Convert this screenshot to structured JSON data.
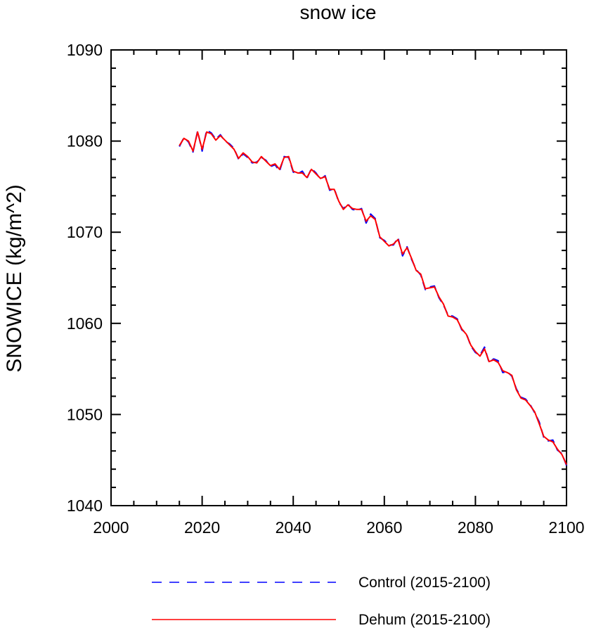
{
  "chart_data": {
    "type": "line",
    "title": "snow ice",
    "ylabel": "SNOWICE  (kg/m^2)",
    "xlabel": "",
    "xlim": [
      2000,
      2100
    ],
    "ylim": [
      1040,
      1090
    ],
    "xticks": [
      2000,
      2020,
      2040,
      2060,
      2080,
      2100
    ],
    "yticks": [
      1040,
      1050,
      1060,
      1070,
      1080,
      1090
    ],
    "xtick_labels": [
      "2000",
      "2020",
      "2040",
      "2060",
      "2080",
      "2100"
    ],
    "ytick_labels": [
      "1040",
      "1050",
      "1060",
      "1070",
      "1080",
      "1090"
    ],
    "x_minor_step": 5,
    "y_minor_step": 2,
    "grid": false,
    "legend_position": "bottom",
    "x": [
      2015,
      2016,
      2017,
      2018,
      2019,
      2020,
      2021,
      2022,
      2023,
      2024,
      2025,
      2026,
      2027,
      2028,
      2029,
      2030,
      2031,
      2032,
      2033,
      2034,
      2035,
      2036,
      2037,
      2038,
      2039,
      2040,
      2041,
      2042,
      2043,
      2044,
      2045,
      2046,
      2047,
      2048,
      2049,
      2050,
      2051,
      2052,
      2053,
      2054,
      2055,
      2056,
      2057,
      2058,
      2059,
      2060,
      2061,
      2062,
      2063,
      2064,
      2065,
      2066,
      2067,
      2068,
      2069,
      2070,
      2071,
      2072,
      2073,
      2074,
      2075,
      2076,
      2077,
      2078,
      2079,
      2080,
      2081,
      2082,
      2083,
      2084,
      2085,
      2086,
      2087,
      2088,
      2089,
      2090,
      2091,
      2092,
      2093,
      2094,
      2095,
      2096,
      2097,
      2098,
      2099,
      2100
    ],
    "series": [
      {
        "name": "Control (2015-2100)",
        "color": "#0000ff",
        "style": "dashed",
        "values": [
          1079.4,
          1080.4,
          1079.9,
          1078.8,
          1081.1,
          1078.9,
          1081.2,
          1080.9,
          1080.2,
          1080.7,
          1080.0,
          1079.7,
          1079.2,
          1078.0,
          1078.6,
          1078.2,
          1077.6,
          1077.7,
          1078.2,
          1077.9,
          1077.2,
          1077.4,
          1076.7,
          1078.3,
          1078.2,
          1076.6,
          1076.4,
          1076.7,
          1075.9,
          1077.0,
          1076.5,
          1075.8,
          1076.2,
          1074.6,
          1074.8,
          1073.3,
          1072.6,
          1073.1,
          1072.5,
          1072.4,
          1072.6,
          1071.0,
          1072.0,
          1071.5,
          1069.4,
          1069.1,
          1068.6,
          1068.6,
          1069.4,
          1067.4,
          1068.4,
          1067.0,
          1065.9,
          1065.3,
          1063.7,
          1064.0,
          1064.1,
          1062.8,
          1062.0,
          1060.9,
          1060.8,
          1060.5,
          1059.3,
          1058.9,
          1057.5,
          1056.8,
          1056.5,
          1057.4,
          1055.7,
          1056.1,
          1055.9,
          1054.6,
          1054.7,
          1054.2,
          1052.8,
          1051.9,
          1051.7,
          1051.1,
          1050.2,
          1049.2,
          1047.5,
          1047.1,
          1047.2,
          1046.1,
          1045.7,
          1044.4
        ]
      },
      {
        "name": "Dehum (2015-2100)",
        "color": "#ff0000",
        "style": "solid",
        "values": [
          1079.5,
          1080.3,
          1080.0,
          1078.9,
          1081.0,
          1079.1,
          1081.0,
          1080.8,
          1080.1,
          1080.6,
          1080.1,
          1079.6,
          1079.1,
          1078.1,
          1078.7,
          1078.3,
          1077.7,
          1077.6,
          1078.3,
          1077.8,
          1077.3,
          1077.5,
          1076.9,
          1078.2,
          1078.3,
          1076.7,
          1076.5,
          1076.5,
          1076.0,
          1076.9,
          1076.4,
          1075.9,
          1076.1,
          1074.7,
          1074.7,
          1073.4,
          1072.5,
          1073.0,
          1072.6,
          1072.5,
          1072.5,
          1071.2,
          1071.8,
          1071.4,
          1069.5,
          1069.0,
          1068.5,
          1068.7,
          1069.2,
          1067.6,
          1068.3,
          1067.1,
          1065.8,
          1065.4,
          1063.8,
          1063.9,
          1064.0,
          1062.9,
          1062.1,
          1060.8,
          1060.7,
          1060.4,
          1059.4,
          1058.8,
          1057.6,
          1056.9,
          1056.4,
          1057.2,
          1055.8,
          1056.0,
          1055.7,
          1054.8,
          1054.6,
          1054.3,
          1052.7,
          1051.8,
          1051.6,
          1051.0,
          1050.3,
          1049.0,
          1047.6,
          1047.2,
          1047.0,
          1046.2,
          1045.6,
          1044.5
        ]
      }
    ]
  }
}
